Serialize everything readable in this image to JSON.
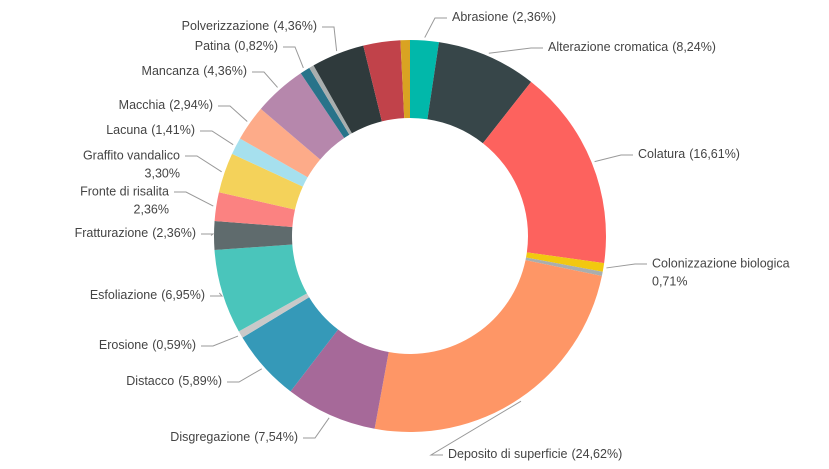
{
  "chart_data": {
    "type": "donut",
    "categories": [
      "Abrasione",
      "Alterazione cromatica",
      "Colatura",
      "Colonizzazione biologica",
      null,
      "Deposito di superficie",
      "Disgregazione",
      "Distacco",
      "Erosione",
      "Esfoliazione",
      "Fratturazione",
      "Fronte di risalita",
      "Graffito vandalico",
      "Lacuna",
      "Macchia",
      "Mancanza",
      "Patina",
      null,
      "Polverizzazione",
      null,
      null
    ],
    "values": [
      2.36,
      8.24,
      16.61,
      0.71,
      0.35,
      24.62,
      7.54,
      5.89,
      0.59,
      6.95,
      2.36,
      2.36,
      3.3,
      1.41,
      2.94,
      4.36,
      0.82,
      0.4,
      4.36,
      3.05,
      0.78
    ],
    "value_labels": [
      "(2,36%)",
      "(8,24%)",
      "(16,61%)",
      "0,71%",
      null,
      "(24,62%)",
      "(7,54%)",
      "(5,89%)",
      "(0,59%)",
      "(6,95%)",
      "(2,36%)",
      "2,36%",
      "3,30%",
      "(1,41%)",
      "(2,94%)",
      "(4,36%)",
      "(0,82%)",
      null,
      "(4,36%)",
      null,
      null
    ],
    "colors": [
      "#01b8aa",
      "#374649",
      "#fd625e",
      "#f2c80f",
      "#a9aeae",
      "#fe9666",
      "#a66999",
      "#3599b8",
      "#c9c9c9",
      "#4ac5bb",
      "#5f6b6d",
      "#fb8281",
      "#f4d25a",
      "#a6e0ee",
      "#fdab89",
      "#b687ac",
      "#28738a",
      "#a9aeae",
      "#2f3a3c",
      "#c1424a",
      "#d9a322"
    ]
  }
}
